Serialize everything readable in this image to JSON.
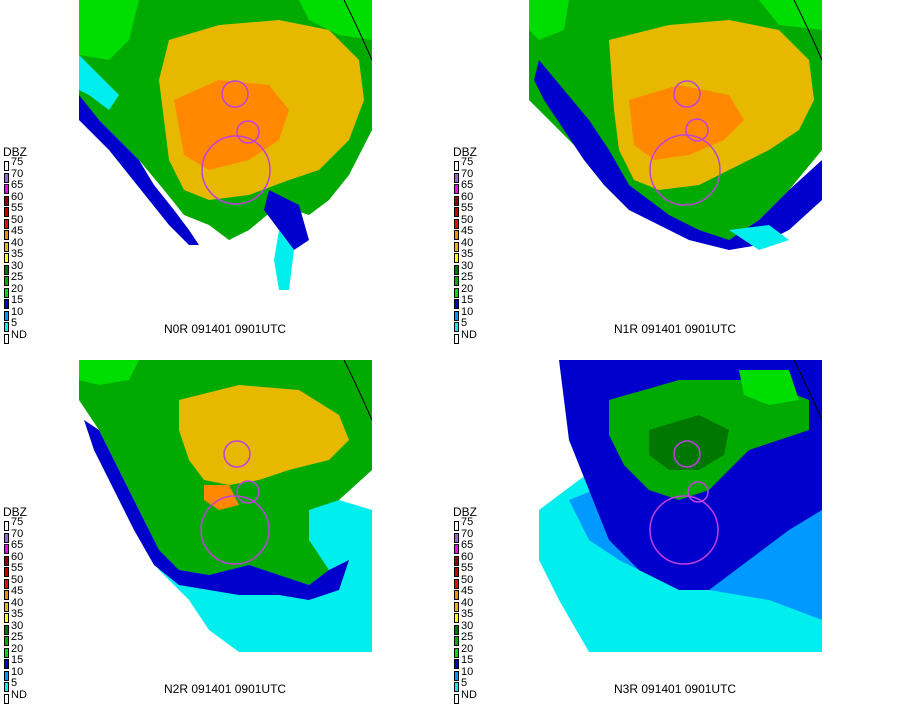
{
  "legend": {
    "title": "DBZ",
    "labels": [
      "75",
      "70",
      "65",
      "60",
      "55",
      "50",
      "45",
      "40",
      "35",
      "30",
      "25",
      "20",
      "15",
      "10",
      "5",
      "ND"
    ],
    "colors": [
      "#ffffff",
      "#9966cc",
      "#ff00ff",
      "#990000",
      "#cc0000",
      "#ff0000",
      "#ff8800",
      "#e6b800",
      "#ffff00",
      "#007700",
      "#00aa00",
      "#00dd00",
      "#0000cc",
      "#0099ff",
      "#00eeee",
      "#ffffff"
    ]
  },
  "panels": [
    {
      "id": "n0r",
      "caption": "N0R 091401 0901UTC"
    },
    {
      "id": "n1r",
      "caption": "N1R 091401 0901UTC"
    },
    {
      "id": "n2r",
      "caption": "N2R 091401 0901UTC"
    },
    {
      "id": "n3r",
      "caption": "N3R 091401 0901UTC"
    }
  ],
  "colors": {
    "ring": "#c040e0",
    "county_line": "#000000"
  }
}
